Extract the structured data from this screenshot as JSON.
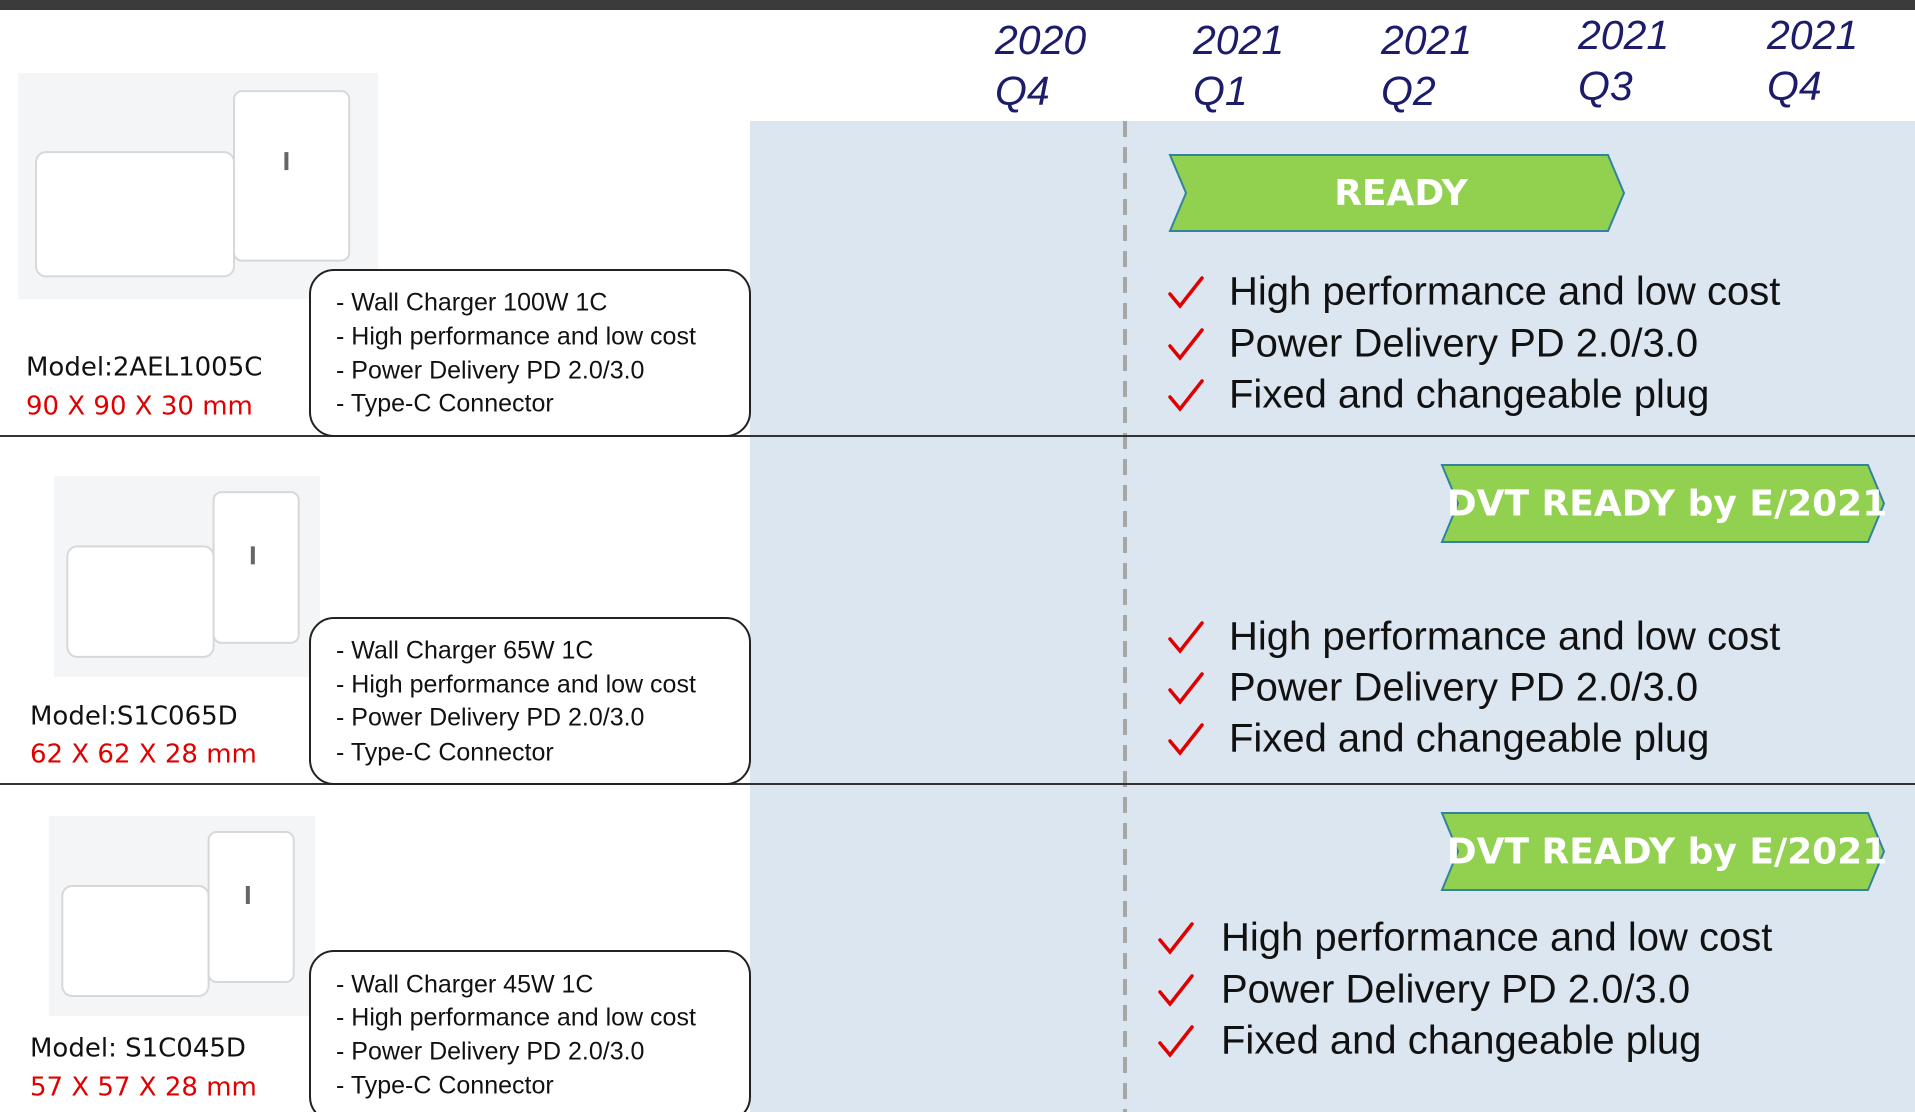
{
  "header": {
    "quarters": [
      {
        "year": "2020",
        "quarter": "Q4"
      },
      {
        "year": "2021",
        "quarter": "Q1"
      },
      {
        "year": "2021",
        "quarter": "Q2"
      },
      {
        "year": "2021",
        "quarter": "Q3"
      },
      {
        "year": "2021",
        "quarter": "Q4"
      }
    ]
  },
  "products": [
    {
      "model": "Model:2AEL1005C",
      "size": "90 X 90 X 30 mm",
      "specs": [
        "- Wall Charger 100W 1C",
        "- High performance and low cost",
        "- Power Delivery PD 2.0/3.0",
        "- Type-C Connector"
      ],
      "status": "READY",
      "features": [
        "High performance and low cost",
        "Power Delivery PD 2.0/3.0",
        "Fixed and changeable plug"
      ]
    },
    {
      "model": "Model:S1C065D",
      "size": "62 X 62 X 28 mm",
      "specs": [
        "- Wall Charger 65W 1C",
        "- High performance and low cost",
        "- Power Delivery PD 2.0/3.0",
        "- Type-C Connector"
      ],
      "status": "DVT READY by E/2021",
      "features": [
        "High performance and low cost",
        "Power Delivery PD 2.0/3.0",
        "Fixed and changeable plug"
      ]
    },
    {
      "model": "Model: S1C045D",
      "size": "57 X 57 X 28 mm",
      "specs": [
        "- Wall Charger 45W 1C",
        "- High performance and low cost",
        "- Power Delivery PD 2.0/3.0",
        "- Type-C Connector"
      ],
      "status": "DVT READY by E/2021",
      "features": [
        "High performance and low cost",
        "Power Delivery PD 2.0/3.0",
        "Fixed and changeable plug"
      ]
    }
  ]
}
